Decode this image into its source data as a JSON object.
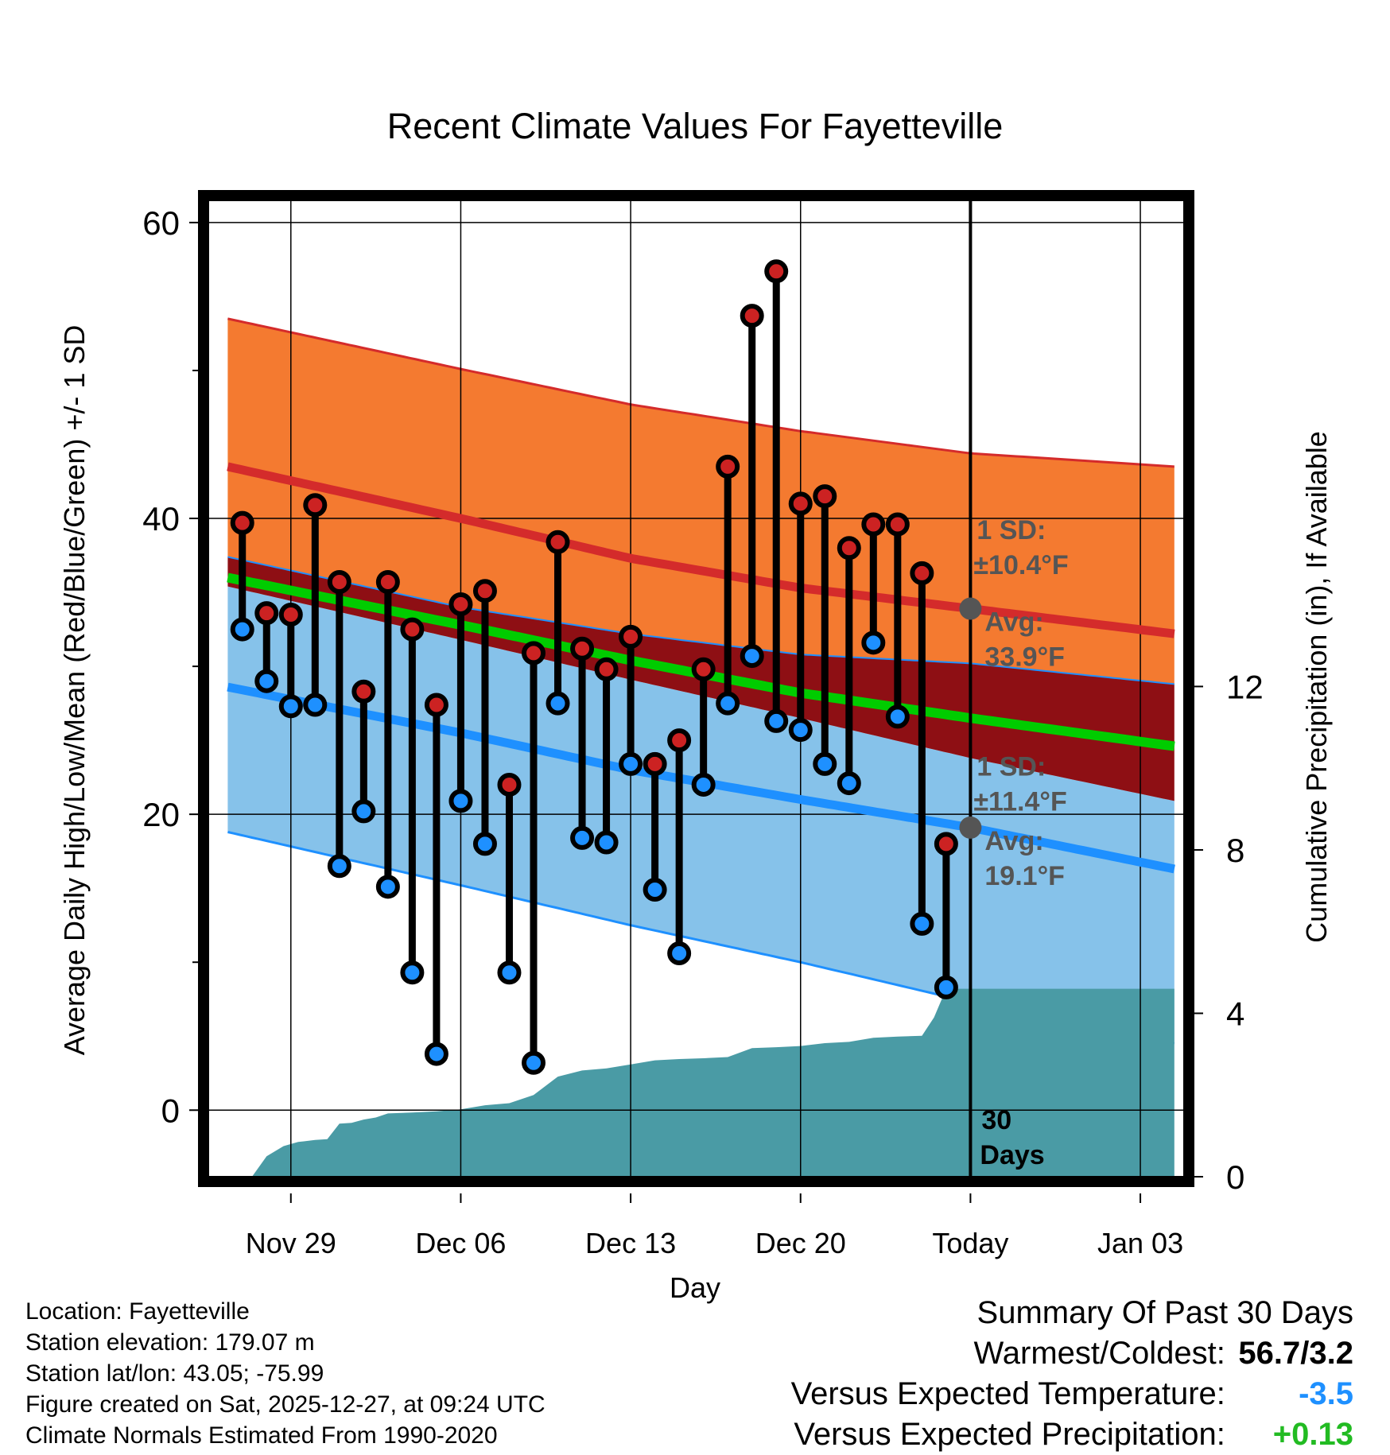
{
  "chart_data": {
    "type": "line",
    "title": "Recent Climate Values For Fayetteville",
    "xlabel": "Day",
    "ylabel": "Average Daily High/Low/Mean (Red/Blue/Green) +/- 1 SD",
    "y2label": "Cumulative Precipitation (in), If Available",
    "ylim": [
      -4.5,
      61.5
    ],
    "y_ticks": [
      0,
      20,
      40,
      60
    ],
    "y2lim": [
      0,
      23.9
    ],
    "y2_ticks": [
      0,
      4,
      8,
      12
    ],
    "xlim": [
      -3.4,
      36.8
    ],
    "x_ticks": [
      {
        "day": 0,
        "label": "Nov 29"
      },
      {
        "day": 7,
        "label": "Dec 06"
      },
      {
        "day": 14,
        "label": "Dec 13"
      },
      {
        "day": 21,
        "label": "Dec 20"
      },
      {
        "day": 28,
        "label": "Today"
      },
      {
        "day": 35,
        "label": "Jan 03"
      }
    ],
    "today_day": 28,
    "normals": {
      "days": [
        -2.6,
        7,
        14,
        21,
        28,
        36.4
      ],
      "high_mean": [
        43.5,
        40.0,
        37.3,
        35.3,
        33.9,
        32.2
      ],
      "high_upper": [
        53.5,
        50.1,
        47.7,
        45.9,
        44.4,
        43.5
      ],
      "high_lower": [
        37.4,
        34.0,
        32.2,
        30.8,
        30.2,
        28.8
      ],
      "low_mean": [
        28.6,
        25.5,
        23.0,
        21.0,
        19.1,
        16.3
      ],
      "low_upper": [
        35.4,
        31.8,
        29.1,
        26.5,
        23.8,
        20.9
      ],
      "low_lower": [
        18.8,
        15.2,
        12.5,
        10.0,
        7.3,
        4.5
      ],
      "mean": [
        36.0,
        32.8,
        30.4,
        28.2,
        26.5,
        24.6
      ]
    },
    "series": [
      {
        "name": "High",
        "color": "#cc2222",
        "values": [
          39.7,
          33.6,
          33.5,
          40.9,
          35.7,
          28.3,
          35.7,
          32.5,
          27.4,
          34.2,
          35.1,
          22.0,
          30.9,
          38.4,
          31.2,
          29.8,
          32.0,
          23.4,
          25.0,
          29.8,
          43.5,
          53.7,
          56.7,
          41.0,
          41.5,
          38.0,
          39.6,
          39.6,
          36.3,
          18.0
        ]
      },
      {
        "name": "Low",
        "color": "#1e90ff",
        "values": [
          32.5,
          29.0,
          27.3,
          27.4,
          16.5,
          20.2,
          15.1,
          9.3,
          3.8,
          20.9,
          18.0,
          9.3,
          3.2,
          27.5,
          18.4,
          18.1,
          23.4,
          14.9,
          10.6,
          22.0,
          27.5,
          30.7,
          26.3,
          25.7,
          23.4,
          22.1,
          31.6,
          26.6,
          12.6,
          8.3
        ]
      }
    ],
    "days": [
      -2,
      -1,
      0,
      1,
      2,
      3,
      4,
      5,
      6,
      7,
      8,
      9,
      10,
      11,
      12,
      13,
      14,
      15,
      16,
      17,
      18,
      19,
      20,
      21,
      22,
      23,
      24,
      25,
      26,
      27
    ],
    "precip_cumulative": {
      "days": [
        -1.6,
        -1,
        -0.3,
        0.3,
        1,
        1.5,
        2,
        2.5,
        3,
        3.5,
        4,
        5,
        6,
        7,
        8,
        9,
        10,
        11,
        12,
        13,
        14,
        15,
        16,
        17,
        18,
        19,
        20,
        21,
        22,
        23,
        24,
        25,
        26,
        26.5,
        27,
        28,
        36.4
      ],
      "values": [
        0,
        0.5,
        0.75,
        0.85,
        0.9,
        0.92,
        1.3,
        1.32,
        1.4,
        1.45,
        1.55,
        1.57,
        1.6,
        1.65,
        1.75,
        1.8,
        2.0,
        2.45,
        2.6,
        2.65,
        2.75,
        2.85,
        2.88,
        2.9,
        2.93,
        3.15,
        3.17,
        3.2,
        3.27,
        3.3,
        3.4,
        3.43,
        3.45,
        3.9,
        4.6,
        4.6,
        4.6
      ]
    },
    "annotations": {
      "high_sd_label": "1 SD:",
      "high_sd_value": "±10.4°F",
      "high_avg_label": "Avg:",
      "high_avg_value": "33.9°F",
      "low_sd_label": "1 SD:",
      "low_sd_value": "±11.4°F",
      "low_avg_label": "Avg:",
      "low_avg_value": "19.1°F",
      "days_label_1": "30",
      "days_label_2": "Days"
    },
    "colors": {
      "high_band": "#f47a30",
      "high_line": "#d42b2b",
      "overlap_band": "#8e0f14",
      "low_band": "#86c2ea",
      "low_line": "#1e90ff",
      "mean_line": "#00cc00",
      "precip_fill": "#4a9ba5",
      "marker_high": "#cc2222",
      "marker_low": "#1e90ff"
    }
  },
  "footer": {
    "location": "Location: Fayetteville",
    "elevation": "Station elevation: 179.07 m",
    "latlon": "Station lat/lon: 43.05; -75.99",
    "created": "Figure created on Sat, 2025-12-27, at 09:24 UTC",
    "normals": "Climate Normals Estimated From 1990-2020"
  },
  "summary": {
    "title": "Summary Of Past 30 Days",
    "warm_cold_label": "Warmest/Coldest:",
    "warm_cold_value": "56.7/3.2",
    "temp_label": "Versus Expected Temperature:",
    "temp_value": "-3.5",
    "precip_label": "Versus Expected Precipitation:",
    "precip_value": "+0.13"
  }
}
